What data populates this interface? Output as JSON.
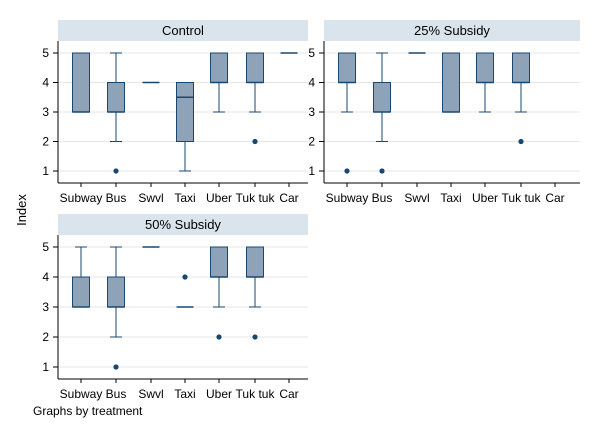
{
  "chart_data": {
    "type": "box",
    "ylabel": "Index",
    "note": "Graphs by treatment",
    "categories": [
      "Subway",
      "Bus",
      "Swvl",
      "Taxi",
      "Uber",
      "Tuk tuk",
      "Car"
    ],
    "yticks": [
      1,
      2,
      3,
      4,
      5
    ],
    "ylim": [
      0.6,
      5.4
    ],
    "grid": true,
    "box_fill": "#8fa3b8",
    "line_color": "#1a476f",
    "header_fill": "#d9e4ec",
    "panels": [
      {
        "title": "Control",
        "boxes": [
          {
            "category": "Subway",
            "q1": 3,
            "median": 3,
            "q3": 5,
            "whisker_low": 3,
            "whisker_high": 5,
            "outliers": []
          },
          {
            "category": "Bus",
            "q1": 3,
            "median": 3,
            "q3": 4,
            "whisker_low": 2,
            "whisker_high": 5,
            "outliers": [
              1
            ]
          },
          {
            "category": "Swvl",
            "q1": 4,
            "median": 4,
            "q3": 4,
            "whisker_low": 4,
            "whisker_high": 4,
            "outliers": []
          },
          {
            "category": "Taxi",
            "q1": 2,
            "median": 3.5,
            "q3": 4,
            "whisker_low": 1,
            "whisker_high": 4,
            "outliers": []
          },
          {
            "category": "Uber",
            "q1": 4,
            "median": 4,
            "q3": 5,
            "whisker_low": 3,
            "whisker_high": 5,
            "outliers": []
          },
          {
            "category": "Tuk tuk",
            "q1": 4,
            "median": 4,
            "q3": 5,
            "whisker_low": 3,
            "whisker_high": 5,
            "outliers": [
              2
            ]
          },
          {
            "category": "Car",
            "q1": 5,
            "median": 5,
            "q3": 5,
            "whisker_low": 5,
            "whisker_high": 5,
            "outliers": []
          }
        ]
      },
      {
        "title": "25% Subsidy",
        "boxes": [
          {
            "category": "Subway",
            "q1": 4,
            "median": 4,
            "q3": 5,
            "whisker_low": 3,
            "whisker_high": 5,
            "outliers": [
              1
            ]
          },
          {
            "category": "Bus",
            "q1": 3,
            "median": 3,
            "q3": 4,
            "whisker_low": 2,
            "whisker_high": 5,
            "outliers": [
              1
            ]
          },
          {
            "category": "Swvl",
            "q1": 5,
            "median": 5,
            "q3": 5,
            "whisker_low": 5,
            "whisker_high": 5,
            "outliers": []
          },
          {
            "category": "Taxi",
            "q1": 3,
            "median": 3,
            "q3": 5,
            "whisker_low": 3,
            "whisker_high": 5,
            "outliers": []
          },
          {
            "category": "Uber",
            "q1": 4,
            "median": 4,
            "q3": 5,
            "whisker_low": 3,
            "whisker_high": 5,
            "outliers": []
          },
          {
            "category": "Tuk tuk",
            "q1": 4,
            "median": 4,
            "q3": 5,
            "whisker_low": 3,
            "whisker_high": 5,
            "outliers": [
              2
            ]
          },
          {
            "category": "Car",
            "q1": null,
            "median": null,
            "q3": null,
            "whisker_low": null,
            "whisker_high": null,
            "outliers": []
          }
        ]
      },
      {
        "title": "50% Subsidy",
        "boxes": [
          {
            "category": "Subway",
            "q1": 3,
            "median": 3,
            "q3": 4,
            "whisker_low": 3,
            "whisker_high": 5,
            "outliers": []
          },
          {
            "category": "Bus",
            "q1": 3,
            "median": 3,
            "q3": 4,
            "whisker_low": 2,
            "whisker_high": 5,
            "outliers": [
              1
            ]
          },
          {
            "category": "Swvl",
            "q1": 5,
            "median": 5,
            "q3": 5,
            "whisker_low": 5,
            "whisker_high": 5,
            "outliers": []
          },
          {
            "category": "Taxi",
            "q1": 3,
            "median": 3,
            "q3": 3,
            "whisker_low": 3,
            "whisker_high": 3,
            "outliers": [
              4
            ]
          },
          {
            "category": "Uber",
            "q1": 4,
            "median": 4,
            "q3": 5,
            "whisker_low": 3,
            "whisker_high": 5,
            "outliers": [
              2
            ]
          },
          {
            "category": "Tuk tuk",
            "q1": 4,
            "median": 4,
            "q3": 5,
            "whisker_low": 3,
            "whisker_high": 5,
            "outliers": [
              2
            ]
          },
          {
            "category": "Car",
            "q1": null,
            "median": null,
            "q3": null,
            "whisker_low": null,
            "whisker_high": null,
            "outliers": []
          }
        ]
      }
    ]
  }
}
